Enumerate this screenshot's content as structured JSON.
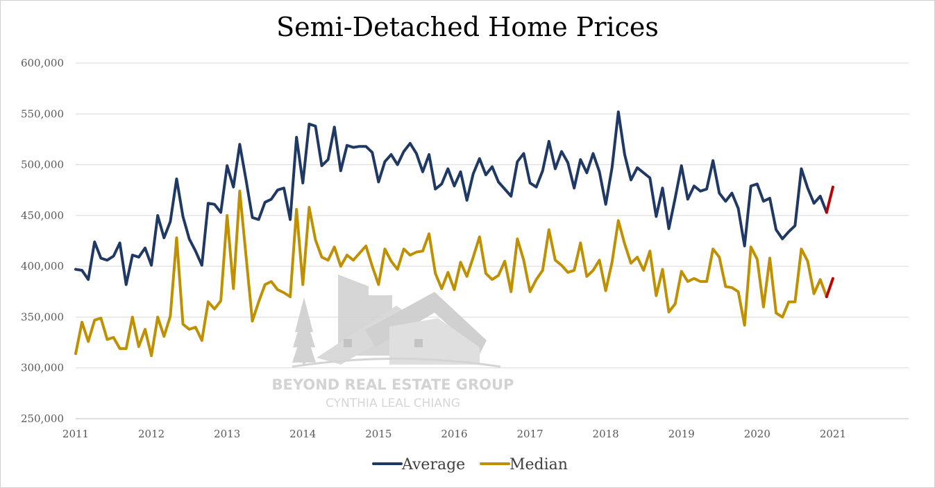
{
  "chart_data": {
    "type": "line",
    "title": "Semi-Detached Home Prices",
    "xlabel": "",
    "ylabel": "",
    "ylim": [
      250000,
      600000
    ],
    "yticks": [
      250000,
      300000,
      350000,
      400000,
      450000,
      500000,
      550000,
      600000
    ],
    "ytick_labels": [
      "250,000",
      "300,000",
      "350,000",
      "400,000",
      "450,000",
      "500,000",
      "550,000",
      "600,000"
    ],
    "xlim": [
      2011,
      2022
    ],
    "xticks": [
      2011,
      2012,
      2013,
      2014,
      2015,
      2016,
      2017,
      2018,
      2019,
      2020,
      2021
    ],
    "xtick_labels": [
      "2011",
      "2012",
      "2013",
      "2014",
      "2015",
      "2016",
      "2017",
      "2018",
      "2019",
      "2020",
      "2021"
    ],
    "grid": "horizontal",
    "legend": "bottom",
    "x_start": "2011-01",
    "frequency": "monthly",
    "series": [
      {
        "name": "Average",
        "color": "#1f3864",
        "values": [
          397000,
          396000,
          387000,
          424000,
          408000,
          406000,
          410000,
          423000,
          382000,
          411000,
          409000,
          418000,
          401000,
          450000,
          428000,
          444000,
          486000,
          449000,
          427000,
          415000,
          401000,
          462000,
          461000,
          453000,
          499000,
          478000,
          520000,
          485000,
          448000,
          446000,
          463000,
          466000,
          475000,
          477000,
          446000,
          527000,
          482000,
          540000,
          538000,
          499000,
          505000,
          537000,
          494000,
          519000,
          517000,
          518000,
          518000,
          512000,
          483000,
          503000,
          510000,
          500000,
          513000,
          521000,
          511000,
          493000,
          510000,
          476000,
          481000,
          496000,
          479000,
          493000,
          465000,
          491000,
          506000,
          490000,
          498000,
          483000,
          476000,
          469000,
          503000,
          511000,
          482000,
          478000,
          494000,
          523000,
          496000,
          513000,
          502000,
          477000,
          505000,
          492000,
          511000,
          493000,
          461000,
          497000,
          552000,
          510000,
          485000,
          497000,
          492000,
          487000,
          449000,
          477000,
          437000,
          467000,
          499000,
          466000,
          479000,
          474000,
          476000,
          504000,
          472000,
          464000,
          472000,
          457000,
          420000,
          479000,
          481000,
          464000,
          467000,
          436000,
          427000,
          434000,
          440000,
          496000,
          477000,
          462000,
          469000,
          453000
        ],
        "projection": [
          453000,
          478000
        ],
        "projection_color": "#c00000"
      },
      {
        "name": "Median",
        "color": "#bf9000",
        "values": [
          314000,
          345000,
          326000,
          347000,
          349000,
          328000,
          330000,
          319000,
          319000,
          350000,
          321000,
          338000,
          312000,
          350000,
          331000,
          351000,
          428000,
          343000,
          338000,
          340000,
          327000,
          365000,
          358000,
          366000,
          450000,
          378000,
          474000,
          410000,
          346000,
          365000,
          382000,
          385000,
          377000,
          374000,
          370000,
          456000,
          382000,
          458000,
          426000,
          409000,
          406000,
          419000,
          400000,
          411000,
          406000,
          413000,
          420000,
          400000,
          382000,
          417000,
          405000,
          397000,
          417000,
          411000,
          414000,
          415000,
          432000,
          393000,
          378000,
          394000,
          377000,
          404000,
          390000,
          409000,
          429000,
          393000,
          387000,
          391000,
          405000,
          375000,
          427000,
          406000,
          375000,
          387000,
          396000,
          436000,
          406000,
          401000,
          394000,
          396000,
          423000,
          390000,
          396000,
          406000,
          376000,
          404000,
          445000,
          422000,
          403000,
          409000,
          396000,
          415000,
          371000,
          397000,
          355000,
          363000,
          395000,
          385000,
          388000,
          385000,
          385000,
          417000,
          409000,
          380000,
          379000,
          375000,
          342000,
          419000,
          407000,
          360000,
          408000,
          354000,
          350000,
          365000,
          365000,
          417000,
          405000,
          373000,
          387000,
          370000
        ],
        "projection": [
          370000,
          388000
        ],
        "projection_color": "#c00000"
      }
    ]
  },
  "watermark": {
    "line1": "BEYOND REAL ESTATE GROUP",
    "line2": "CYNTHIA LEAL CHIANG"
  }
}
